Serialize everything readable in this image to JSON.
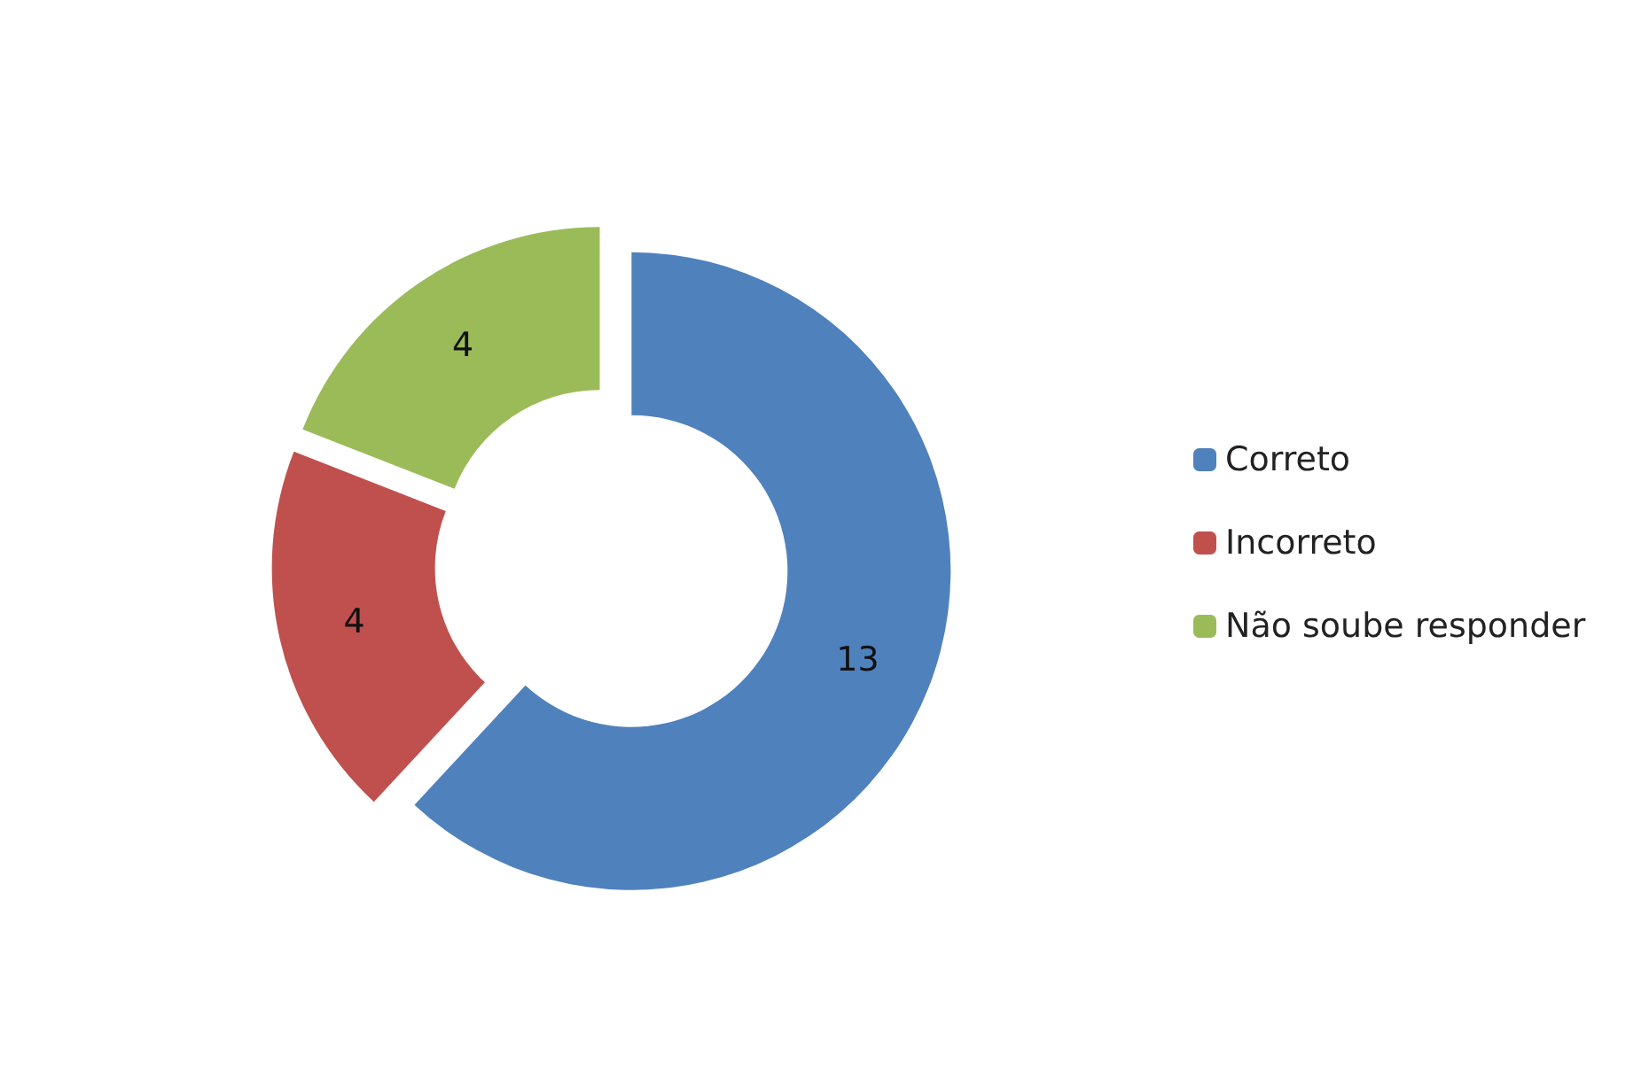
{
  "chart_data": {
    "type": "donut",
    "categories": [
      "Correto",
      "Incorreto",
      "Não soube responder"
    ],
    "values": [
      13,
      4,
      4
    ],
    "colors": [
      "#4f81bd",
      "#c0504d",
      "#9bbb59"
    ],
    "data_labels": true,
    "legend": "right"
  }
}
